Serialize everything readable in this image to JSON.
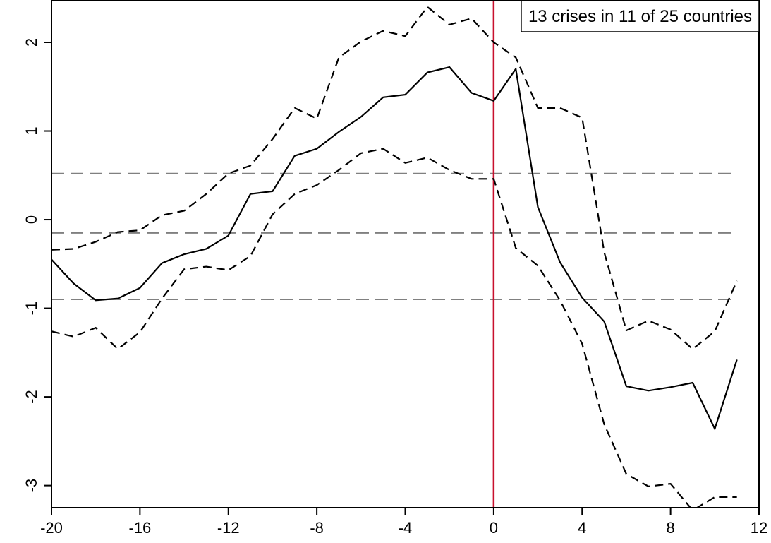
{
  "chart_data": {
    "type": "line",
    "annotation": "13 crises in 11 of 25 countries",
    "x": [
      -20,
      -19,
      -18,
      -17,
      -16,
      -15,
      -14,
      -13,
      -12,
      -11,
      -10,
      -9,
      -8,
      -7,
      -6,
      -5,
      -4,
      -3,
      -2,
      -1,
      0,
      1,
      2,
      3,
      4,
      5,
      6,
      7,
      8,
      9,
      10,
      11
    ],
    "series": [
      {
        "color": "#000000",
        "dash": "none",
        "values": [
          -0.45,
          -0.72,
          -0.91,
          -0.89,
          -0.77,
          -0.49,
          -0.39,
          -0.33,
          -0.18,
          0.29,
          0.32,
          0.72,
          0.8,
          0.99,
          1.16,
          1.38,
          1.41,
          1.66,
          1.72,
          1.43,
          1.34,
          1.7,
          0.14,
          -0.48,
          -0.88,
          -1.15,
          -1.88,
          -1.93,
          -1.89,
          -1.84,
          -2.36,
          -1.58
        ]
      },
      {
        "color": "#000000",
        "dash": "12 7",
        "values": [
          -0.34,
          -0.33,
          -0.25,
          -0.14,
          -0.12,
          0.05,
          0.1,
          0.29,
          0.52,
          0.61,
          0.91,
          1.26,
          1.14,
          1.83,
          2.01,
          2.13,
          2.07,
          2.4,
          2.2,
          2.27,
          2.0,
          1.83,
          1.26,
          1.26,
          1.15,
          -0.37,
          -1.25,
          -1.14,
          -1.24,
          -1.46,
          -1.26,
          -0.69
        ]
      },
      {
        "color": "#000000",
        "dash": "12 7",
        "values": [
          -1.26,
          -1.32,
          -1.22,
          -1.46,
          -1.27,
          -0.89,
          -0.56,
          -0.53,
          -0.57,
          -0.41,
          0.06,
          0.29,
          0.39,
          0.56,
          0.75,
          0.8,
          0.64,
          0.7,
          0.56,
          0.46,
          0.46,
          -0.32,
          -0.52,
          -0.91,
          -1.4,
          -2.31,
          -2.87,
          -3.01,
          -2.98,
          -3.28,
          -3.13,
          -3.13
        ]
      }
    ],
    "hlines": {
      "color": "#808080",
      "dash": "18 9",
      "values": [
        0.52,
        -0.15,
        -0.9
      ]
    },
    "vline": {
      "color": "#c8102e",
      "value": 0
    },
    "xlim": [
      -20,
      12
    ],
    "xticks": [
      -20,
      -16,
      -12,
      -8,
      -4,
      0,
      4,
      8,
      12
    ],
    "ylim": [
      -3.25,
      2.47
    ],
    "yticks": [
      -3,
      -2,
      -1,
      0,
      1,
      2
    ]
  }
}
